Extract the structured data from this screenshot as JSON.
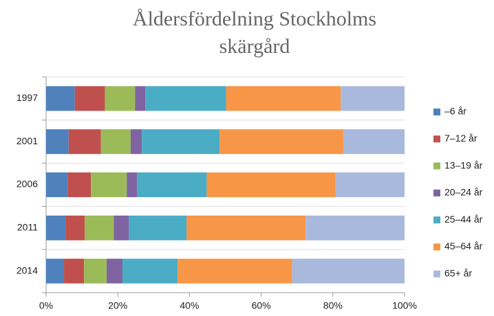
{
  "chart_data": {
    "type": "stacked-bar-horizontal",
    "title": [
      "Åldersfördelning Stockholms",
      "skärgård"
    ],
    "categories": [
      "1997",
      "2001",
      "2006",
      "2011",
      "2014"
    ],
    "series": [
      {
        "name": "–6 år",
        "color": "#4f81bd",
        "values": [
          8.0,
          6.3,
          6.0,
          5.4,
          5.0
        ]
      },
      {
        "name": "7–12 år",
        "color": "#c0504d",
        "values": [
          8.4,
          9.0,
          6.5,
          5.4,
          5.6
        ]
      },
      {
        "name": "13–19 år",
        "color": "#9bbb59",
        "values": [
          8.4,
          8.3,
          10.0,
          8.1,
          6.3
        ]
      },
      {
        "name": "20–24 år",
        "color": "#8064a2",
        "values": [
          2.9,
          3.1,
          2.9,
          4.2,
          4.4
        ]
      },
      {
        "name": "25–44 år",
        "color": "#4bacc6",
        "values": [
          22.5,
          21.7,
          19.4,
          16.1,
          15.4
        ]
      },
      {
        "name": "45–64 år",
        "color": "#f79646",
        "values": [
          32.0,
          34.5,
          35.9,
          33.2,
          31.9
        ]
      },
      {
        "name": "65+ år",
        "color": "#a9b9dd",
        "values": [
          17.8,
          17.1,
          19.3,
          27.6,
          31.4
        ]
      }
    ],
    "xlim": [
      0,
      100
    ],
    "xticks": [
      {
        "value": 0,
        "label": "0%"
      },
      {
        "value": 20,
        "label": "20%"
      },
      {
        "value": 40,
        "label": "40%"
      },
      {
        "value": 60,
        "label": "60%"
      },
      {
        "value": 80,
        "label": "80%"
      },
      {
        "value": 100,
        "label": "100%"
      }
    ],
    "grid": true,
    "legend": "right"
  }
}
